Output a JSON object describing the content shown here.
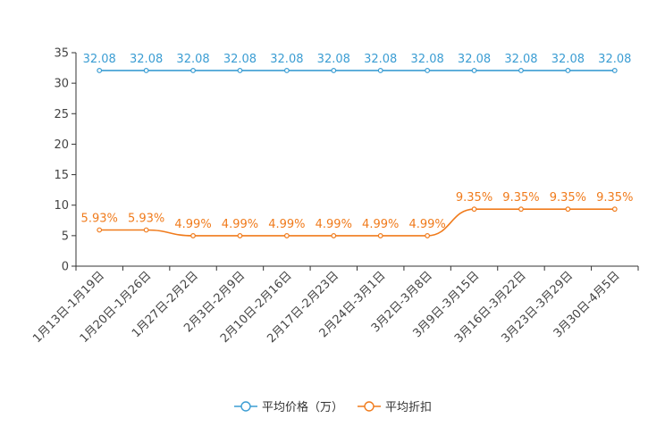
{
  "chart_data": {
    "type": "line",
    "title": "",
    "xlabel": "",
    "ylabel": "",
    "ylim": [
      0,
      35
    ],
    "yticks": [
      0,
      5,
      10,
      15,
      20,
      25,
      30,
      35
    ],
    "grid": false,
    "legend_position": "bottom-center",
    "categories": [
      "1月13日-1月19日",
      "1月20日-1月26日",
      "1月27日-2月2日",
      "2月3日-2月9日",
      "2月10日-2月16日",
      "2月17日-2月23日",
      "2月24日-3月1日",
      "3月2日-3月8日",
      "3月9日-3月15日",
      "3月16日-3月22日",
      "3月23日-3月29日",
      "3月30日-4月5日"
    ],
    "series": [
      {
        "name": "平均价格（万）",
        "color": "#3b9dd3",
        "smooth": false,
        "values": [
          32.08,
          32.08,
          32.08,
          32.08,
          32.08,
          32.08,
          32.08,
          32.08,
          32.08,
          32.08,
          32.08,
          32.08
        ],
        "labels": [
          "32.08",
          "32.08",
          "32.08",
          "32.08",
          "32.08",
          "32.08",
          "32.08",
          "32.08",
          "32.08",
          "32.08",
          "32.08",
          "32.08"
        ]
      },
      {
        "name": "平均折扣",
        "color": "#f07b1c",
        "smooth": true,
        "values": [
          5.93,
          5.93,
          4.99,
          4.99,
          4.99,
          4.99,
          4.99,
          4.99,
          9.35,
          9.35,
          9.35,
          9.35
        ],
        "labels": [
          "5.93%",
          "5.93%",
          "4.99%",
          "4.99%",
          "4.99%",
          "4.99%",
          "4.99%",
          "4.99%",
          "9.35%",
          "9.35%",
          "9.35%",
          "9.35%"
        ]
      }
    ]
  }
}
